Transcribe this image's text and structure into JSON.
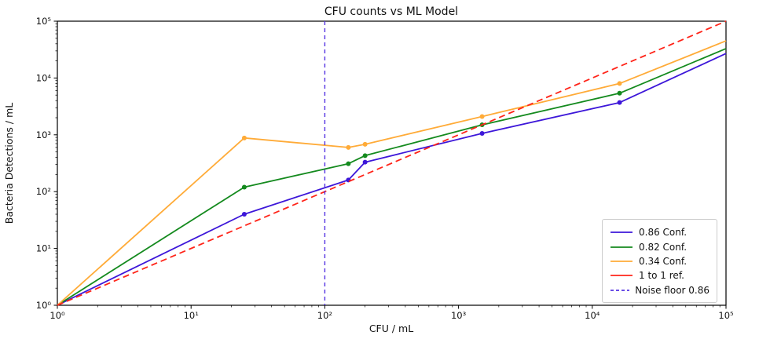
{
  "chart_data": {
    "type": "line",
    "title": "CFU counts vs ML Model",
    "xlabel": "CFU / mL",
    "ylabel": "Bacteria Detections / mL",
    "xscale": "log",
    "yscale": "log",
    "xlim": [
      1,
      100000
    ],
    "ylim": [
      1,
      100000
    ],
    "grid": false,
    "legend_position": "lower right",
    "x_ticks": [
      {
        "value": 1,
        "label": "10⁰"
      },
      {
        "value": 10,
        "label": "10¹"
      },
      {
        "value": 100,
        "label": "10²"
      },
      {
        "value": 1000,
        "label": "10³"
      },
      {
        "value": 10000,
        "label": "10⁴"
      },
      {
        "value": 100000,
        "label": "10⁵"
      }
    ],
    "y_ticks": [
      {
        "value": 1,
        "label": "10⁰"
      },
      {
        "value": 10,
        "label": "10¹"
      },
      {
        "value": 100,
        "label": "10²"
      },
      {
        "value": 1000,
        "label": "10³"
      },
      {
        "value": 10000,
        "label": "10⁴"
      },
      {
        "value": 100000,
        "label": "10⁵"
      }
    ],
    "series": [
      {
        "name": "0.86 Conf.",
        "color": "#3d17d9",
        "dash": "",
        "legend_style": "solid",
        "marker": true,
        "x": [
          1,
          25,
          150,
          200,
          1500,
          16000,
          100000
        ],
        "y": [
          1,
          40,
          160,
          330,
          1060,
          3700,
          27000
        ]
      },
      {
        "name": "0.82 Conf.",
        "color": "#148a1e",
        "dash": "",
        "legend_style": "solid",
        "marker": true,
        "x": [
          1,
          25,
          150,
          200,
          1500,
          16000,
          100000
        ],
        "y": [
          1,
          120,
          310,
          430,
          1500,
          5400,
          33000
        ]
      },
      {
        "name": "0.34 Conf.",
        "color": "#ffab38",
        "dash": "",
        "legend_style": "solid",
        "marker": true,
        "x": [
          1,
          25,
          150,
          200,
          1500,
          16000,
          100000
        ],
        "y": [
          1,
          880,
          600,
          680,
          2100,
          8000,
          45000
        ]
      },
      {
        "name": "1 to 1 ref.",
        "color": "#ff2419",
        "dash": "8 5",
        "legend_style": "solid",
        "marker": false,
        "x": [
          1,
          100000
        ],
        "y": [
          1,
          100000
        ]
      },
      {
        "name": "Noise floor 0.86",
        "color": "#5433e2",
        "dash": "5 4",
        "legend_style": "dashed",
        "marker": false,
        "vline": 100
      }
    ]
  }
}
